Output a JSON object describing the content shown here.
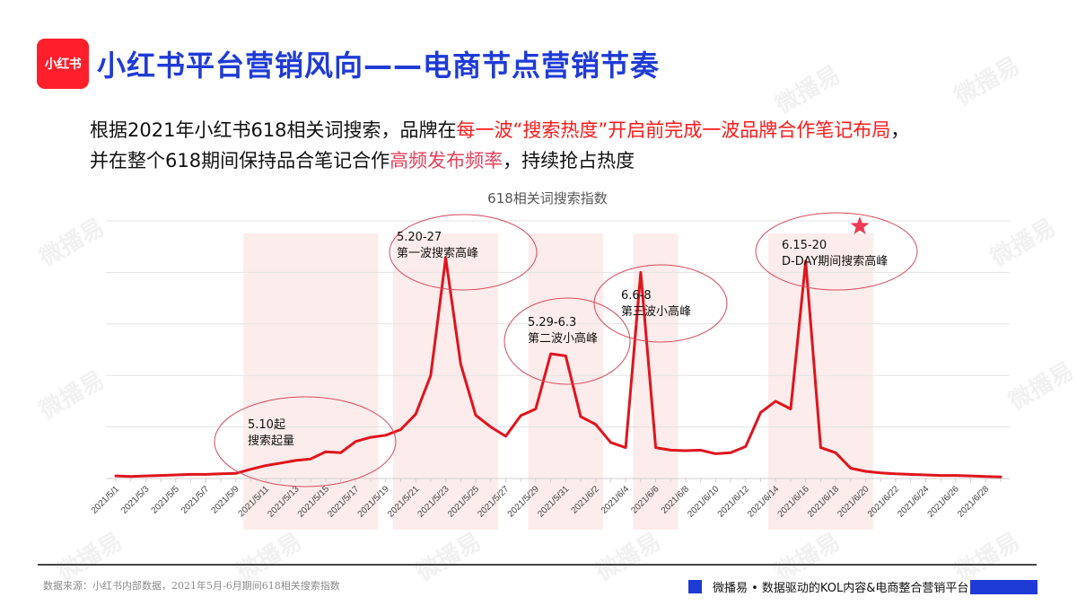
{
  "header": {
    "logo_text": "小红书",
    "title": "小红书平台营销风向——电商节点营销节奏"
  },
  "intro": {
    "line1": [
      {
        "text": "根据2021年小红书618相关词搜索，品牌在",
        "style": "normal"
      },
      {
        "text": "每一波“搜索热度”开启前完成一波品牌合作笔记布局",
        "style": "red"
      },
      {
        "text": "，",
        "style": "normal"
      }
    ],
    "line2": [
      {
        "text": "并在整个618期间保持品合笔记合作",
        "style": "normal"
      },
      {
        "text": "高频发布频率",
        "style": "pink"
      },
      {
        "text": "，持续抢占热度",
        "style": "normal"
      }
    ]
  },
  "colors": {
    "title_blue": "#1f3bd6",
    "line_red": "#e0141c",
    "band_pink": "#fdecec",
    "ellipse": "#d94a5a",
    "star": "#ee3b55",
    "gridline": "#e3e3e3"
  },
  "chart_data": {
    "type": "line",
    "title": "618相关词搜索指数",
    "xlabel": "",
    "ylabel": "",
    "y_axis_labels_shown": false,
    "grid": true,
    "ylim": [
      0,
      5
    ],
    "y_unit_note": "No y-axis values are shown; values are in gridline units (0 = baseline, 5 = top gridline)",
    "x": [
      "2021/5/1",
      "2021/5/2",
      "2021/5/3",
      "2021/5/4",
      "2021/5/5",
      "2021/5/6",
      "2021/5/7",
      "2021/5/8",
      "2021/5/9",
      "2021/5/10",
      "2021/5/11",
      "2021/5/12",
      "2021/5/13",
      "2021/5/14",
      "2021/5/15",
      "2021/5/16",
      "2021/5/17",
      "2021/5/18",
      "2021/5/19",
      "2021/5/20",
      "2021/5/21",
      "2021/5/22",
      "2021/5/23",
      "2021/5/24",
      "2021/5/25",
      "2021/5/26",
      "2021/5/27",
      "2021/5/28",
      "2021/5/29",
      "2021/5/30",
      "2021/5/31",
      "2021/6/1",
      "2021/6/2",
      "2021/6/3",
      "2021/6/4",
      "2021/6/5",
      "2021/6/6",
      "2021/6/7",
      "2021/6/8",
      "2021/6/9",
      "2021/6/10",
      "2021/6/11",
      "2021/6/12",
      "2021/6/13",
      "2021/6/14",
      "2021/6/15",
      "2021/6/16",
      "2021/6/17",
      "2021/6/18",
      "2021/6/19",
      "2021/6/20",
      "2021/6/21",
      "2021/6/22",
      "2021/6/23",
      "2021/6/24",
      "2021/6/25",
      "2021/6/26",
      "2021/6/27",
      "2021/6/28",
      "2021/6/29"
    ],
    "tick_labels": [
      "2021/5/1",
      "2021/5/3",
      "2021/5/5",
      "2021/5/7",
      "2021/5/9",
      "2021/5/11",
      "2021/5/13",
      "2021/5/15",
      "2021/5/17",
      "2021/5/19",
      "2021/5/21",
      "2021/5/23",
      "2021/5/25",
      "2021/5/27",
      "2021/5/29",
      "2021/5/31",
      "2021/6/2",
      "2021/6/4",
      "2021/6/6",
      "2021/6/8",
      "2021/6/10",
      "2021/6/12",
      "2021/6/14",
      "2021/6/16",
      "2021/6/18",
      "2021/6/20",
      "2021/6/22",
      "2021/6/24",
      "2021/6/26",
      "2021/6/28"
    ],
    "series": [
      {
        "name": "618相关词搜索指数",
        "values": [
          0.05,
          0.04,
          0.05,
          0.06,
          0.07,
          0.08,
          0.08,
          0.09,
          0.1,
          0.18,
          0.25,
          0.3,
          0.35,
          0.38,
          0.52,
          0.5,
          0.72,
          0.8,
          0.84,
          0.95,
          1.25,
          2.0,
          4.28,
          2.22,
          1.23,
          1.0,
          0.82,
          1.22,
          1.35,
          2.42,
          2.38,
          1.2,
          1.05,
          0.7,
          0.6,
          4.0,
          0.6,
          0.55,
          0.54,
          0.55,
          0.48,
          0.5,
          0.62,
          1.28,
          1.5,
          1.35,
          4.22,
          0.6,
          0.5,
          0.2,
          0.14,
          0.11,
          0.09,
          0.08,
          0.07,
          0.06,
          0.06,
          0.05,
          0.04,
          0.03
        ]
      }
    ],
    "highlight_bands": [
      {
        "from": "2021/5/10",
        "to": "2021/5/18"
      },
      {
        "from": "2021/5/20",
        "to": "2021/5/26"
      },
      {
        "from": "2021/5/29",
        "to": "2021/6/2"
      },
      {
        "from": "2021/6/5",
        "to": "2021/6/7"
      },
      {
        "from": "2021/6/14",
        "to": "2021/6/20"
      }
    ],
    "annotations": [
      {
        "line1": "5.10起",
        "line2": "搜索起量"
      },
      {
        "line1": "5.20-27",
        "line2": "第一波搜索高峰"
      },
      {
        "line1": "5.29-6.3",
        "line2": "第二波小高峰"
      },
      {
        "line1": "6.6-8",
        "line2": "第三波小高峰"
      },
      {
        "line1": "6.15-20",
        "line2": "D-DAY期间搜索高峰"
      }
    ],
    "legend": "none"
  },
  "footer": {
    "source": "数据来源：小红书内部数据，2021年5月-6月期间618相关搜索指数",
    "brand": "微播易 • 数据驱动的KOL内容&电商整合营销平台"
  },
  "watermark_text": "微播易"
}
